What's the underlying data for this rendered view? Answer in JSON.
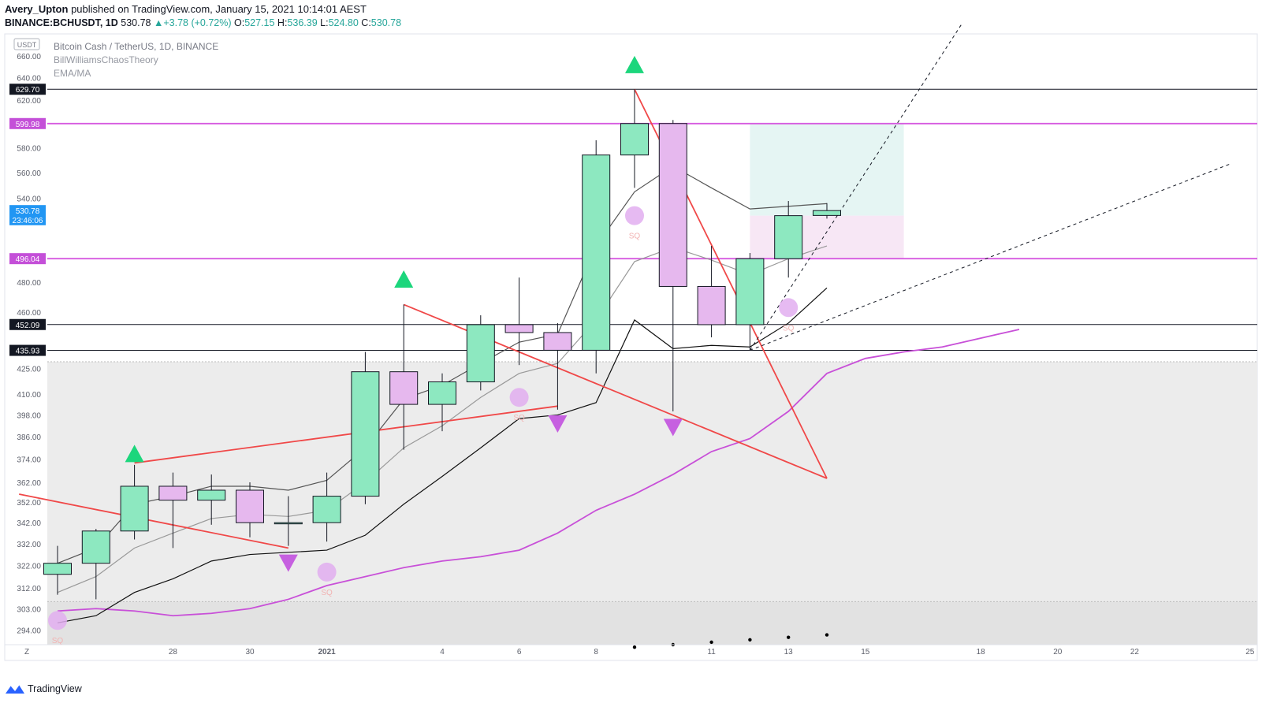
{
  "header": {
    "author": "Avery_Upton",
    "published_text": "published on TradingView.com, January 15, 2021 10:14:01 AEST",
    "symbol": "BINANCE:BCHUSDT, 1D",
    "last_price": "530.78",
    "change": "+3.78 (+0.72%)",
    "o_label": "O:",
    "o_value": "527.15",
    "h_label": "H:",
    "h_value": "536.39",
    "l_label": "L:",
    "l_value": "524.80",
    "c_label": "C:",
    "c_value": "530.78"
  },
  "legend": {
    "title": "Bitcoin Cash / TetherUS, 1D, BINANCE",
    "indicator1": "BillWilliamsChaosTheory",
    "indicator2": "EMA/MA"
  },
  "footer": {
    "brand": "TradingView"
  },
  "colors": {
    "up_candle": "#8de8c0",
    "down_candle": "#e6b8ee",
    "fractal_up": "#1cd67c",
    "fractal_down": "#c660e0",
    "purple_line": "#d65ae0",
    "red_line": "#f04848",
    "price_badge": "#2196f3",
    "squat": "#e2aef0"
  },
  "chart_data": {
    "type": "candlestick",
    "title": "Bitcoin Cash / TetherUS, 1D, BINANCE",
    "currency": "USDT",
    "scale": "log",
    "ylim": [
      288,
      680
    ],
    "y_ticks": [
      "660.00",
      "640.00",
      "620.00",
      "580.00",
      "560.00",
      "540.00",
      "480.00",
      "460.00",
      "425.00",
      "410.00",
      "398.00",
      "386.00",
      "374.00",
      "362.00",
      "352.00",
      "342.00",
      "332.00",
      "322.00",
      "312.00",
      "303.00",
      "294.00"
    ],
    "x_ticks": [
      {
        "label": "28",
        "day": 4
      },
      {
        "label": "30",
        "day": 6
      },
      {
        "label": "2021",
        "day": 8
      },
      {
        "label": "4",
        "day": 11
      },
      {
        "label": "6",
        "day": 13
      },
      {
        "label": "8",
        "day": 15
      },
      {
        "label": "11",
        "day": 18
      },
      {
        "label": "13",
        "day": 20
      },
      {
        "label": "15",
        "day": 22
      },
      {
        "label": "18",
        "day": 25
      },
      {
        "label": "20",
        "day": 27
      },
      {
        "label": "22",
        "day": 29
      },
      {
        "label": "25",
        "day": 32
      }
    ],
    "axis_corner_label": "Z",
    "candles": [
      {
        "day": 1,
        "o": 318,
        "h": 331,
        "l": 309,
        "c": 323
      },
      {
        "day": 2,
        "o": 323,
        "h": 339,
        "l": 307,
        "c": 338
      },
      {
        "day": 3,
        "o": 338,
        "h": 371,
        "l": 334,
        "c": 360
      },
      {
        "day": 4,
        "o": 360,
        "h": 367,
        "l": 330,
        "c": 353
      },
      {
        "day": 5,
        "o": 353,
        "h": 366,
        "l": 341,
        "c": 358
      },
      {
        "day": 6,
        "o": 358,
        "h": 362,
        "l": 335,
        "c": 342
      },
      {
        "day": 7,
        "o": 342,
        "h": 355,
        "l": 331,
        "c": 342
      },
      {
        "day": 8,
        "o": 342,
        "h": 367,
        "l": 333,
        "c": 355
      },
      {
        "day": 9,
        "o": 355,
        "h": 435,
        "l": 351,
        "c": 423
      },
      {
        "day": 10,
        "o": 423,
        "h": 465,
        "l": 379,
        "c": 404
      },
      {
        "day": 11,
        "o": 404,
        "h": 422,
        "l": 389,
        "c": 417
      },
      {
        "day": 12,
        "o": 417,
        "h": 458,
        "l": 412,
        "c": 452
      },
      {
        "day": 13,
        "o": 452,
        "h": 483,
        "l": 427,
        "c": 447
      },
      {
        "day": 14,
        "o": 447,
        "h": 453,
        "l": 401,
        "c": 436
      },
      {
        "day": 15,
        "o": 436,
        "h": 586,
        "l": 422,
        "c": 574
      },
      {
        "day": 16,
        "o": 574,
        "h": 629.7,
        "l": 548,
        "c": 600
      },
      {
        "day": 17,
        "o": 600,
        "h": 603,
        "l": 400,
        "c": 477
      },
      {
        "day": 18,
        "o": 477,
        "h": 505,
        "l": 444,
        "c": 452
      },
      {
        "day": 19,
        "o": 452,
        "h": 500,
        "l": 436,
        "c": 496
      },
      {
        "day": 20,
        "o": 496,
        "h": 538,
        "l": 483,
        "c": 527
      },
      {
        "day": 21,
        "o": 527.15,
        "h": 536.39,
        "l": 524.8,
        "c": 530.78
      }
    ],
    "price_badges": [
      {
        "label": "629.70",
        "value": 629.7,
        "kind": "black"
      },
      {
        "label": "599.98",
        "value": 599.98,
        "kind": "purple"
      },
      {
        "label": "530.78",
        "value": 530.78,
        "kind": "blue"
      },
      {
        "label": "23:46:06",
        "value": 524,
        "kind": "blue"
      },
      {
        "label": "496.04",
        "value": 496.04,
        "kind": "purple"
      },
      {
        "label": "452.09",
        "value": 452.09,
        "kind": "black"
      },
      {
        "label": "435.93",
        "value": 435.93,
        "kind": "black"
      }
    ],
    "horizontal_lines": [
      {
        "value": 629.7,
        "color": "black"
      },
      {
        "value": 599.98,
        "color": "purple"
      },
      {
        "value": 496.04,
        "color": "purple"
      },
      {
        "value": 452.09,
        "color": "black"
      },
      {
        "value": 435.93,
        "color": "black"
      }
    ],
    "fractals_up": [
      {
        "day": 3,
        "value": 377
      },
      {
        "day": 10,
        "value": 482
      },
      {
        "day": 16,
        "value": 652
      }
    ],
    "fractals_down": [
      {
        "day": 7,
        "value": 323
      },
      {
        "day": 14,
        "value": 393
      },
      {
        "day": 17,
        "value": 391
      }
    ],
    "squat_bars": [
      {
        "day": 1,
        "value": 298,
        "label": "SQ"
      },
      {
        "day": 8,
        "value": 319,
        "label": "SQ"
      },
      {
        "day": 13,
        "value": 408,
        "label": "SQ"
      },
      {
        "day": 16,
        "value": 527,
        "label": "SQ"
      },
      {
        "day": 20,
        "value": 463,
        "label": "SQ"
      }
    ],
    "series": [
      {
        "name": "",
        "color": "#c850d8",
        "values": [
          [
            1,
            302
          ],
          [
            2,
            303
          ],
          [
            3,
            302
          ],
          [
            4,
            300
          ],
          [
            5,
            301
          ],
          [
            6,
            303
          ],
          [
            7,
            307
          ],
          [
            8,
            313
          ],
          [
            9,
            317
          ],
          [
            10,
            321
          ],
          [
            11,
            324
          ],
          [
            12,
            326
          ],
          [
            13,
            329
          ],
          [
            14,
            337
          ],
          [
            15,
            348
          ],
          [
            16,
            356
          ],
          [
            17,
            366
          ],
          [
            18,
            378
          ],
          [
            19,
            385
          ],
          [
            20,
            400
          ],
          [
            21,
            422
          ],
          [
            22,
            431
          ],
          [
            23,
            435
          ],
          [
            24,
            438
          ],
          [
            26,
            449
          ]
        ]
      },
      {
        "name": "",
        "color": "#111111",
        "values": [
          [
            1,
            297
          ],
          [
            2,
            300
          ],
          [
            3,
            310
          ],
          [
            4,
            316
          ],
          [
            5,
            324
          ],
          [
            6,
            327
          ],
          [
            7,
            328
          ],
          [
            8,
            329
          ],
          [
            9,
            336
          ],
          [
            10,
            351
          ],
          [
            11,
            365
          ],
          [
            12,
            380
          ],
          [
            13,
            396
          ],
          [
            14,
            398
          ],
          [
            15,
            405
          ],
          [
            16,
            455
          ],
          [
            17,
            437
          ],
          [
            18,
            439
          ],
          [
            19,
            438
          ],
          [
            20,
            453
          ],
          [
            21,
            476
          ]
        ]
      },
      {
        "name": "",
        "color": "#555555",
        "values": [
          [
            1,
            323
          ],
          [
            2,
            330
          ],
          [
            3,
            351
          ],
          [
            4,
            355
          ],
          [
            5,
            360
          ],
          [
            6,
            360
          ],
          [
            7,
            358
          ],
          [
            8,
            363
          ],
          [
            9,
            380
          ],
          [
            10,
            407
          ],
          [
            11,
            415
          ],
          [
            12,
            428
          ],
          [
            13,
            441
          ],
          [
            14,
            446
          ],
          [
            15,
            505
          ],
          [
            16,
            545
          ],
          [
            17,
            565
          ],
          [
            18,
            548
          ],
          [
            19,
            532
          ],
          [
            20,
            534
          ],
          [
            21,
            536
          ]
        ]
      },
      {
        "name": "",
        "color": "#999999",
        "values": [
          [
            1,
            310
          ],
          [
            2,
            317
          ],
          [
            3,
            330
          ],
          [
            4,
            337
          ],
          [
            5,
            344
          ],
          [
            6,
            346
          ],
          [
            7,
            345
          ],
          [
            8,
            348
          ],
          [
            9,
            362
          ],
          [
            10,
            380
          ],
          [
            11,
            392
          ],
          [
            12,
            408
          ],
          [
            13,
            422
          ],
          [
            14,
            428
          ],
          [
            15,
            455
          ],
          [
            16,
            494
          ],
          [
            17,
            504
          ],
          [
            18,
            495
          ],
          [
            19,
            485
          ],
          [
            20,
            496
          ],
          [
            21,
            505
          ]
        ]
      }
    ],
    "red_lines": [
      {
        "from": [
          0,
          356
        ],
        "to": [
          7,
          330
        ]
      },
      {
        "from": [
          3,
          372
        ],
        "to": [
          14,
          403
        ]
      },
      {
        "from": [
          10,
          465
        ],
        "to": [
          21,
          364
        ]
      },
      {
        "from": [
          16,
          629.7
        ],
        "to": [
          21,
          364
        ]
      }
    ],
    "dashed_lines": [
      {
        "from": [
          19,
          436
        ],
        "to": [
          24.5,
          690
        ]
      },
      {
        "from": [
          19,
          436
        ],
        "to": [
          31.5,
          567
        ]
      }
    ],
    "zone": {
      "day_from": 19,
      "day_to": 23,
      "target": 600,
      "entry": 527,
      "stop": 496
    },
    "dots": [
      {
        "day": 16,
        "value": 287
      },
      {
        "day": 17,
        "value": 288
      },
      {
        "day": 18,
        "value": 289
      },
      {
        "day": 19,
        "value": 290
      },
      {
        "day": 20,
        "value": 291
      },
      {
        "day": 21,
        "value": 292
      }
    ]
  }
}
